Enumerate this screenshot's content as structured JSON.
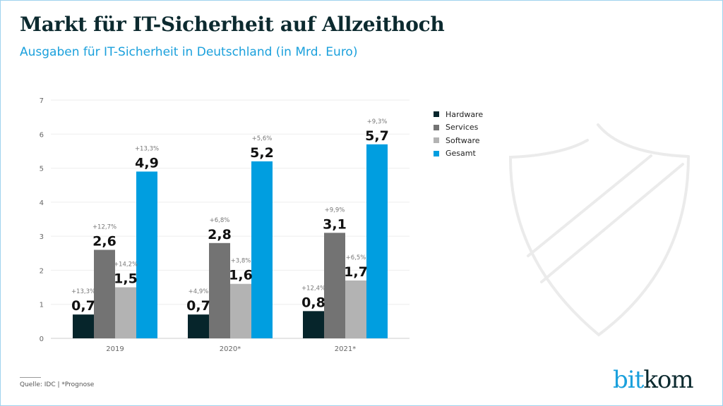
{
  "title": "Markt für IT-Sicherheit auf Allzeithoch",
  "subtitle": "Ausgaben für IT-Sicherheit in Deutschland (in Mrd. Euro)",
  "source": "Quelle: IDC | *Prognose",
  "logo": {
    "part1": "bit",
    "part2": "kom"
  },
  "chart_data": {
    "type": "bar",
    "categories": [
      "2019",
      "2020*",
      "2021*"
    ],
    "ylim": [
      0,
      7
    ],
    "yticks": [
      "0",
      "1",
      "2",
      "3",
      "4",
      "5",
      "6",
      "7"
    ],
    "grid": true,
    "legend_position": "right",
    "series": [
      {
        "name": "Hardware",
        "color": "#06252b",
        "values": [
          0.7,
          0.7,
          0.8
        ],
        "labels": [
          "0,7",
          "0,7",
          "0,8"
        ],
        "growth": [
          "+13,3%",
          "+4,9%",
          "+12,4%"
        ]
      },
      {
        "name": "Services",
        "color": "#737373",
        "values": [
          2.6,
          2.8,
          3.1
        ],
        "labels": [
          "2,6",
          "2,8",
          "3,1"
        ],
        "growth": [
          "+12,7%",
          "+6,8%",
          "+9,9%"
        ]
      },
      {
        "name": "Software",
        "color": "#b3b3b3",
        "values": [
          1.5,
          1.6,
          1.7
        ],
        "labels": [
          "1,5",
          "1,6",
          "1,7"
        ],
        "growth": [
          "+14,2%",
          "+3,8%",
          "+6,5%"
        ]
      },
      {
        "name": "Gesamt",
        "color": "#009ee0",
        "values": [
          4.9,
          5.2,
          5.7
        ],
        "labels": [
          "4,9",
          "5,2",
          "5,7"
        ],
        "growth": [
          "+13,3%",
          "+5,6%",
          "+9,3%"
        ]
      }
    ]
  }
}
